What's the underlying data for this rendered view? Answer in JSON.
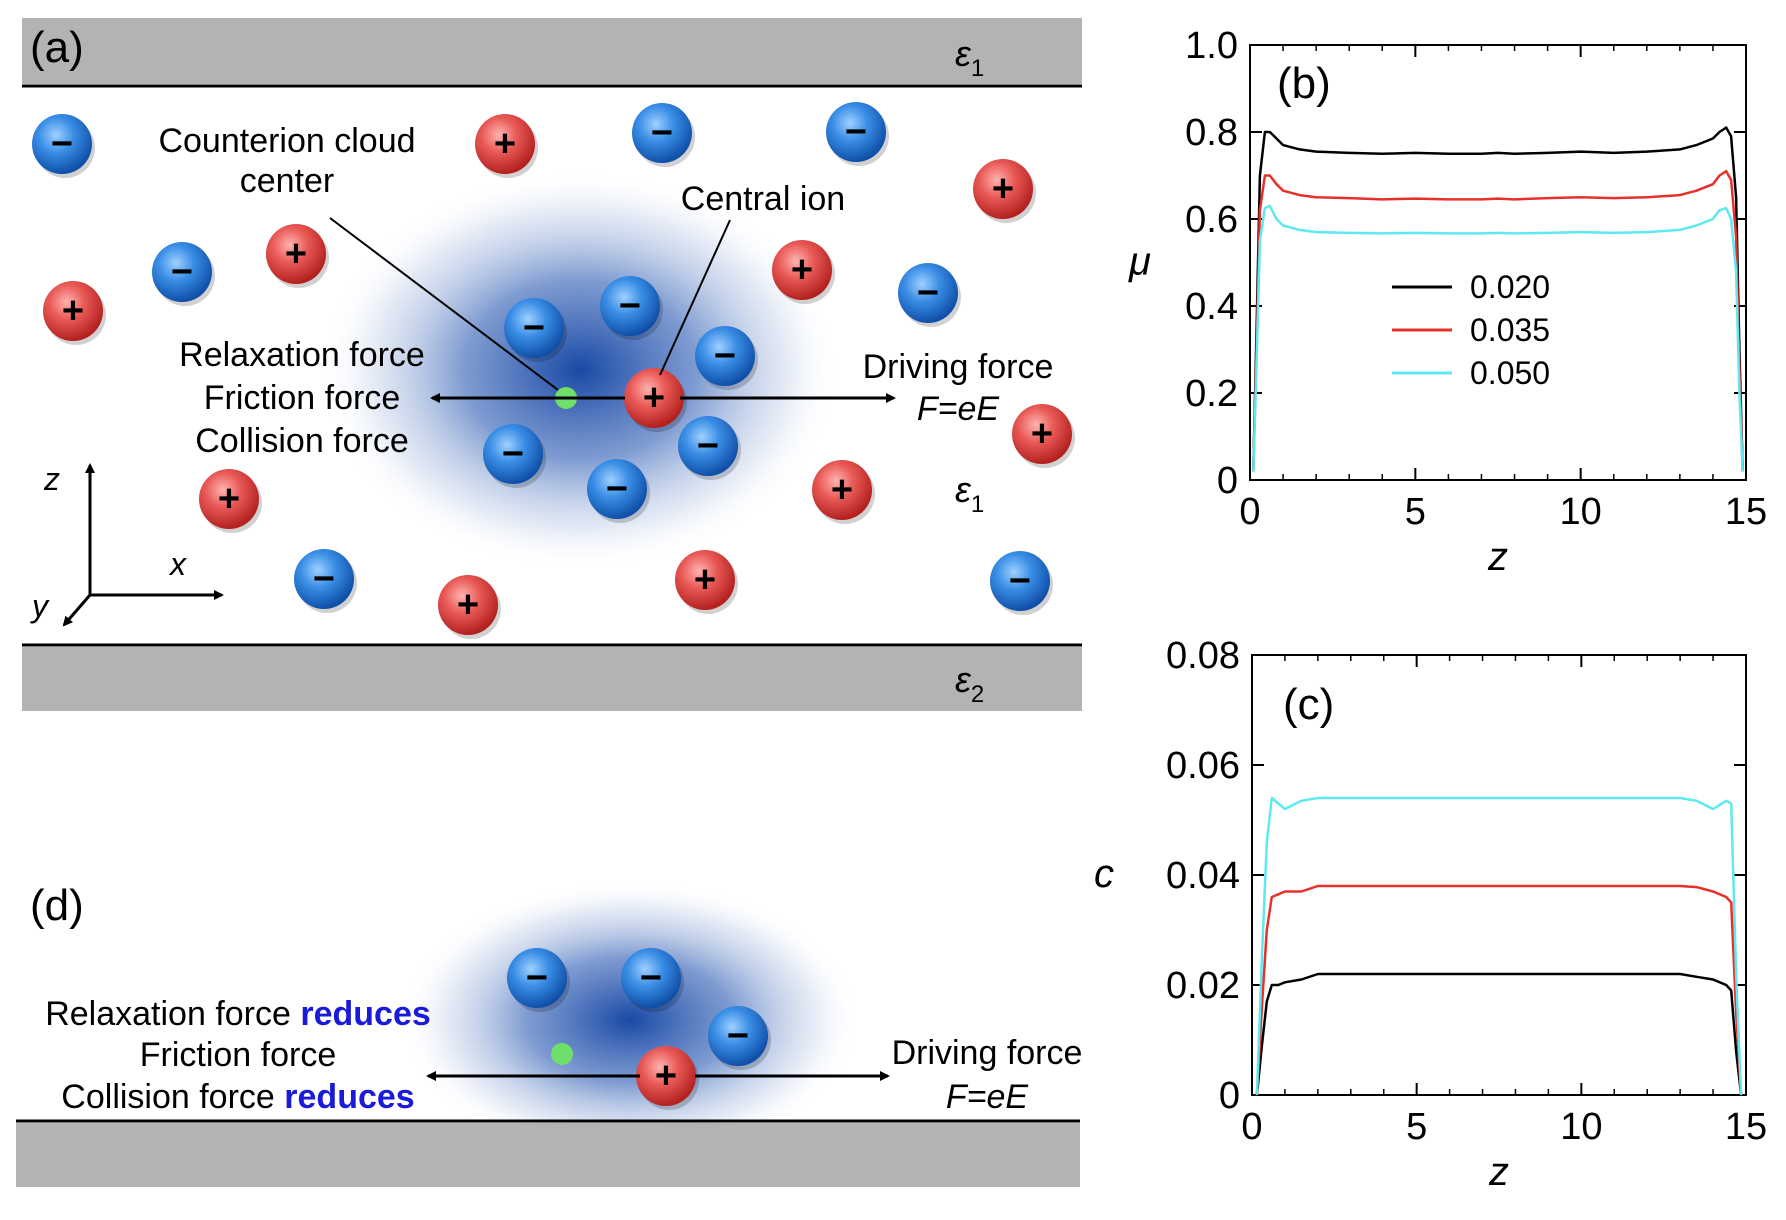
{
  "panel_a": {
    "label": "(a)",
    "eps_top": "ε",
    "eps_top_sub": "1",
    "eps_mid": "ε",
    "eps_mid_sub": "1",
    "eps_bottom": "ε",
    "eps_bottom_sub": "2",
    "counterion_label_1": "Counterion cloud",
    "counterion_label_2": "center",
    "central_ion_label": "Central ion",
    "left_forces": [
      "Relaxation force",
      "Friction force",
      "Collision force"
    ],
    "driving_force": "Driving force",
    "driving_formula": "F=eE",
    "axis_z": "z",
    "axis_x": "x",
    "axis_y": "y",
    "plus_sign": "+",
    "minus_sign": "−"
  },
  "panel_d": {
    "label": "(d)",
    "force_1": "Relaxation force ",
    "force_1_emph": "reduces",
    "force_2": "Friction force",
    "force_3": "Collision force ",
    "force_3_emph": "reduces",
    "driving_force": "Driving force",
    "driving_formula": "F=eE",
    "emph_color": "#1a1adb"
  },
  "chart_data": [
    {
      "panel": "(b)",
      "type": "line",
      "title": "",
      "xlabel": "z",
      "ylabel": "μ",
      "xlim": [
        0,
        15
      ],
      "ylim": [
        0,
        1.0
      ],
      "xticks": [
        "0",
        "5",
        "10",
        "15"
      ],
      "yticks": [
        "0",
        "0.2",
        "0.4",
        "0.6",
        "0.8",
        "1.0"
      ],
      "legend": "center",
      "x": [
        0.1,
        0.2,
        0.3,
        0.45,
        0.6,
        0.8,
        1.0,
        1.5,
        2,
        3,
        4,
        5,
        6,
        7,
        7.5,
        8,
        9,
        10,
        11,
        12,
        13,
        13.5,
        14.0,
        14.2,
        14.4,
        14.55,
        14.7,
        14.8,
        14.9
      ],
      "series": [
        {
          "name": "0.020",
          "color": "#000000",
          "values": [
            0.02,
            0.35,
            0.7,
            0.8,
            0.8,
            0.785,
            0.77,
            0.76,
            0.755,
            0.752,
            0.75,
            0.752,
            0.75,
            0.75,
            0.752,
            0.75,
            0.752,
            0.755,
            0.752,
            0.755,
            0.76,
            0.77,
            0.785,
            0.8,
            0.81,
            0.79,
            0.65,
            0.3,
            0.02
          ]
        },
        {
          "name": "0.035",
          "color": "#e8302a",
          "values": [
            0.02,
            0.3,
            0.62,
            0.7,
            0.7,
            0.68,
            0.665,
            0.655,
            0.65,
            0.648,
            0.645,
            0.647,
            0.645,
            0.645,
            0.647,
            0.645,
            0.648,
            0.65,
            0.648,
            0.65,
            0.655,
            0.665,
            0.68,
            0.7,
            0.71,
            0.69,
            0.56,
            0.25,
            0.02
          ]
        },
        {
          "name": "0.050",
          "color": "#5ee8f0",
          "values": [
            0.02,
            0.27,
            0.55,
            0.625,
            0.63,
            0.6,
            0.585,
            0.575,
            0.57,
            0.568,
            0.567,
            0.568,
            0.567,
            0.567,
            0.568,
            0.567,
            0.568,
            0.57,
            0.568,
            0.57,
            0.575,
            0.585,
            0.6,
            0.62,
            0.625,
            0.6,
            0.48,
            0.2,
            0.02
          ]
        }
      ]
    },
    {
      "panel": "(c)",
      "type": "line",
      "title": "",
      "xlabel": "z",
      "ylabel": "c",
      "xlim": [
        0,
        15
      ],
      "ylim": [
        0,
        0.08
      ],
      "xticks": [
        "0",
        "5",
        "10",
        "15"
      ],
      "yticks": [
        "0",
        "0.02",
        "0.04",
        "0.06",
        "0.08"
      ],
      "x": [
        0.15,
        0.3,
        0.45,
        0.6,
        0.8,
        1.0,
        1.5,
        2,
        3,
        5,
        7.5,
        10,
        12,
        13,
        13.5,
        14,
        14.4,
        14.55,
        14.7,
        14.85
      ],
      "series": [
        {
          "name": "0.020",
          "color": "#000000",
          "values": [
            0.0,
            0.009,
            0.017,
            0.02,
            0.02,
            0.0205,
            0.021,
            0.022,
            0.022,
            0.022,
            0.022,
            0.022,
            0.022,
            0.022,
            0.0215,
            0.021,
            0.02,
            0.019,
            0.008,
            0.0
          ]
        },
        {
          "name": "0.035",
          "color": "#e8302a",
          "values": [
            0.0,
            0.016,
            0.03,
            0.036,
            0.0365,
            0.037,
            0.037,
            0.038,
            0.038,
            0.038,
            0.038,
            0.038,
            0.038,
            0.038,
            0.0378,
            0.037,
            0.036,
            0.035,
            0.015,
            0.0
          ]
        },
        {
          "name": "0.050",
          "color": "#5ee8f0",
          "values": [
            0.0,
            0.025,
            0.046,
            0.054,
            0.053,
            0.052,
            0.0535,
            0.054,
            0.054,
            0.054,
            0.054,
            0.054,
            0.054,
            0.054,
            0.0535,
            0.052,
            0.0535,
            0.053,
            0.022,
            0.0
          ]
        }
      ]
    }
  ]
}
